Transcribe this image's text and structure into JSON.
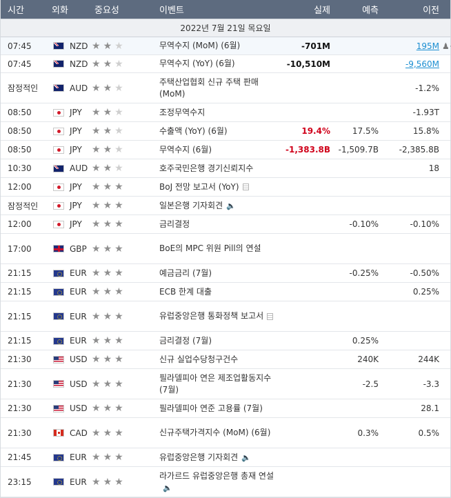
{
  "header": {
    "time": "시간",
    "currency": "외화",
    "importance": "중요성",
    "event": "이벤트",
    "actual": "실제",
    "forecast": "예측",
    "previous": "이전"
  },
  "date_label": "2022년 7월 21일 목요일",
  "rows": [
    {
      "time": "07:45",
      "flag": "nz",
      "cur": "NZD",
      "stars": 2,
      "event": "무역수지 (MoM) (6월)",
      "actual": "-701M",
      "actual_color": "neg",
      "forecast": "",
      "previous": "195M",
      "previous_style": "link",
      "icon": "",
      "alert": "♟+",
      "h": 25
    },
    {
      "time": "07:45",
      "flag": "nz",
      "cur": "NZD",
      "stars": 2,
      "event": "무역수지 (YoY) (6월)",
      "actual": "-10,510M",
      "actual_color": "neg",
      "forecast": "",
      "previous": "-9,560M",
      "previous_style": "link",
      "icon": "",
      "h": 25
    },
    {
      "time": "잠정적인",
      "flag": "au",
      "cur": "AUD",
      "stars": 2,
      "event": "주택산업협회 신규 주택 판매 (MoM)",
      "actual": "",
      "forecast": "",
      "previous": "-1.2%",
      "icon": "",
      "h": 43
    },
    {
      "time": "08:50",
      "flag": "jp",
      "cur": "JPY",
      "stars": 2,
      "event": "조정무역수지",
      "actual": "",
      "forecast": "",
      "previous": "-1.93T",
      "icon": "",
      "h": 26
    },
    {
      "time": "08:50",
      "flag": "jp",
      "cur": "JPY",
      "stars": 2,
      "event": "수출액 (YoY) (6월)",
      "actual": "19.4%",
      "actual_color": "red",
      "forecast": "17.5%",
      "previous": "15.8%",
      "icon": "",
      "h": 26
    },
    {
      "time": "08:50",
      "flag": "jp",
      "cur": "JPY",
      "stars": 2,
      "event": "무역수지 (6월)",
      "actual": "-1,383.8B",
      "actual_color": "red",
      "forecast": "-1,509.7B",
      "previous": "-2,385.8B",
      "icon": "",
      "h": 26
    },
    {
      "time": "10:30",
      "flag": "au",
      "cur": "AUD",
      "stars": 2,
      "event": "호주국민은행 경기신뢰지수",
      "actual": "",
      "forecast": "",
      "previous": "18",
      "icon": "",
      "h": 26
    },
    {
      "time": "12:00",
      "flag": "jp",
      "cur": "JPY",
      "stars": 3,
      "event": "BoJ 전망 보고서 (YoY)",
      "actual": "",
      "forecast": "",
      "previous": "",
      "icon": "doc",
      "h": 26
    },
    {
      "time": "잠정적인",
      "flag": "jp",
      "cur": "JPY",
      "stars": 3,
      "event": "일본은행 기자회견",
      "actual": "",
      "forecast": "",
      "previous": "",
      "icon": "spk",
      "h": 26
    },
    {
      "time": "12:00",
      "flag": "jp",
      "cur": "JPY",
      "stars": 3,
      "event": "금리결정",
      "actual": "",
      "forecast": "-0.10%",
      "previous": "-0.10%",
      "icon": "",
      "h": 26
    },
    {
      "time": "17:00",
      "flag": "gb",
      "cur": "GBP",
      "stars": 3,
      "event": "BoE의 MPC 위원 Pill의 연설",
      "actual": "",
      "forecast": "",
      "previous": "",
      "icon": "",
      "h": 43
    },
    {
      "time": "21:15",
      "flag": "eu",
      "cur": "EUR",
      "stars": 3,
      "event": "예금금리 (7월)",
      "actual": "",
      "forecast": "-0.25%",
      "previous": "-0.50%",
      "icon": "",
      "h": 26
    },
    {
      "time": "21:15",
      "flag": "eu",
      "cur": "EUR",
      "stars": 3,
      "event": "ECB 한계 대출",
      "actual": "",
      "forecast": "",
      "previous": "0.25%",
      "icon": "",
      "h": 26
    },
    {
      "time": "21:15",
      "flag": "eu",
      "cur": "EUR",
      "stars": 3,
      "event": "유럽중앙은행 통화정책 보고서",
      "actual": "",
      "forecast": "",
      "previous": "",
      "icon": "doc",
      "h": 43
    },
    {
      "time": "21:15",
      "flag": "eu",
      "cur": "EUR",
      "stars": 3,
      "event": "금리결정 (7월)",
      "actual": "",
      "forecast": "0.25%",
      "previous": "",
      "icon": "",
      "h": 26
    },
    {
      "time": "21:30",
      "flag": "us",
      "cur": "USD",
      "stars": 3,
      "event": "신규 실업수당청구건수",
      "actual": "",
      "forecast": "240K",
      "previous": "244K",
      "icon": "",
      "h": 26
    },
    {
      "time": "21:30",
      "flag": "us",
      "cur": "USD",
      "stars": 3,
      "event": "필라델피아 연은 제조업활동지수 (7월)",
      "actual": "",
      "forecast": "-2.5",
      "previous": "-3.3",
      "icon": "",
      "h": 43
    },
    {
      "time": "21:30",
      "flag": "us",
      "cur": "USD",
      "stars": 3,
      "event": "필라델피아 연준 고용률 (7월)",
      "actual": "",
      "forecast": "",
      "previous": "28.1",
      "icon": "",
      "h": 26
    },
    {
      "time": "21:30",
      "flag": "ca",
      "cur": "CAD",
      "stars": 3,
      "event": "신규주택가격지수 (MoM) (6월)",
      "actual": "",
      "forecast": "0.3%",
      "previous": "0.5%",
      "icon": "",
      "h": 43
    },
    {
      "time": "21:45",
      "flag": "eu",
      "cur": "EUR",
      "stars": 3,
      "event": "유럽중앙은행 기자회견",
      "actual": "",
      "forecast": "",
      "previous": "",
      "icon": "spk",
      "h": 26
    },
    {
      "time": "23:15",
      "flag": "eu",
      "cur": "EUR",
      "stars": 3,
      "event": "라가르드 유럽중앙은행 총재 연설",
      "actual": "",
      "forecast": "",
      "previous": "",
      "icon": "spk",
      "h": 43
    }
  ]
}
